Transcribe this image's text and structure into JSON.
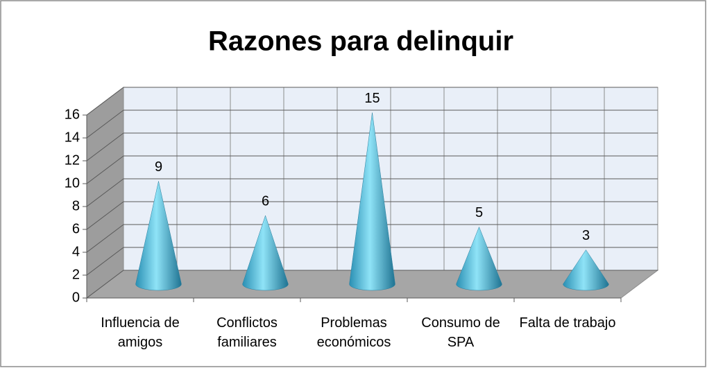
{
  "chart_data": {
    "type": "bar",
    "title": "Razones para delinquir",
    "categories": [
      "Influencia de amigos",
      "Conflictos familiares",
      "Problemas económicos",
      "Consumo de SPA",
      "Falta de trabajo"
    ],
    "values": [
      9,
      6,
      15,
      5,
      3
    ],
    "color": "#4bb8dc",
    "ylim": [
      0,
      16
    ],
    "yticks": [
      0,
      2,
      4,
      6,
      8,
      10,
      12,
      14,
      16
    ],
    "grid": true
  }
}
